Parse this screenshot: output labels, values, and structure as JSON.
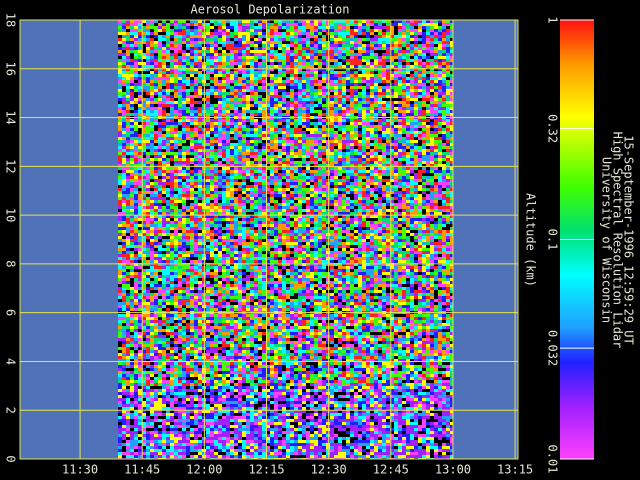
{
  "chart_data": {
    "type": "heatmap",
    "title": "Aerosol Depolarization",
    "ylabel": "Altitude (km)",
    "ylim": [
      0,
      18
    ],
    "yticks": [
      0,
      2,
      4,
      6,
      8,
      10,
      12,
      14,
      16,
      18
    ],
    "xlim": [
      675.5,
      795.7
    ],
    "xticks": [
      {
        "value": 690,
        "label": "11:30"
      },
      {
        "value": 705,
        "label": "11:45"
      },
      {
        "value": 720,
        "label": "12:00"
      },
      {
        "value": 735,
        "label": "12:15"
      },
      {
        "value": 750,
        "label": "12:30"
      },
      {
        "value": 765,
        "label": "12:45"
      },
      {
        "value": 780,
        "label": "13:00"
      },
      {
        "value": 795,
        "label": "13:15"
      }
    ],
    "grid": true,
    "grid_color": "#e6e64c",
    "background_color": "#4f72b8",
    "colorbar": {
      "scale": "log",
      "lim": [
        0.01,
        1
      ],
      "ticks": [
        0.01,
        0.032,
        0.1,
        0.32,
        1
      ]
    },
    "annotations": [
      "University of Wisconsin",
      "High Spectral Resolution Lidar",
      "15-September-1996 12:59:29 UT"
    ]
  }
}
